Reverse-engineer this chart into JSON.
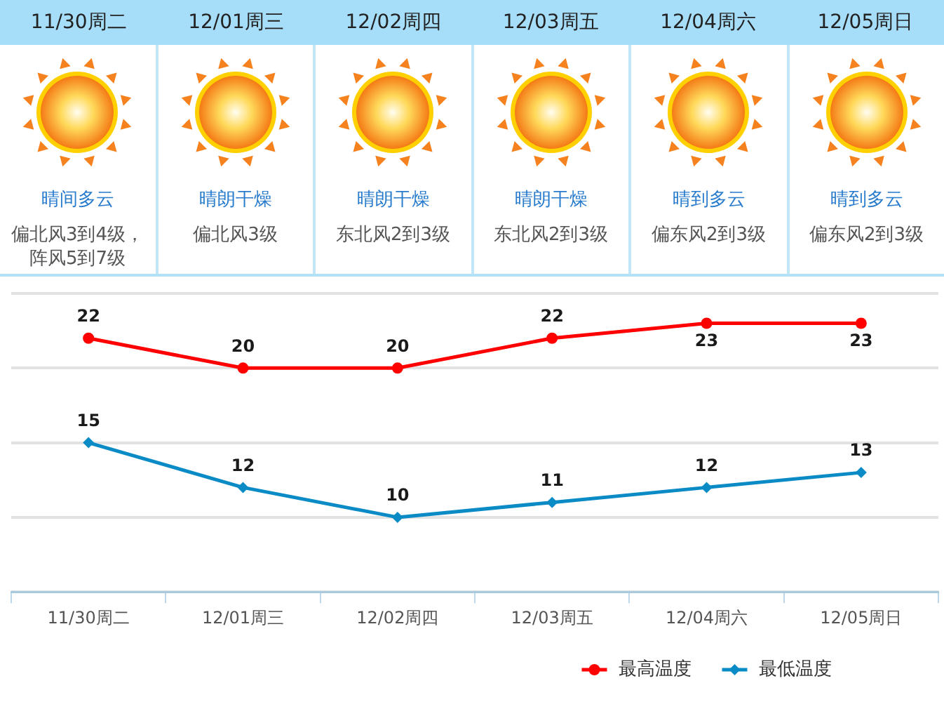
{
  "chart_data": [
    {
      "type": "other",
      "categories": [
        "11/30周二",
        "12/01周三",
        "12/02周四",
        "12/03周五",
        "12/04周六",
        "12/05周日"
      ],
      "annotations": [
        "晴间多云",
        "偏北风3到4级，阵风5到7级",
        "晴朗干燥",
        "偏北风3级",
        "晴朗干燥",
        "东北风2到3级",
        "晴朗干燥",
        "东北风2到3级",
        "晴到多云",
        "偏东风2到3级",
        "晴到多云",
        "偏东风2到3级"
      ]
    },
    {
      "type": "line",
      "categories": [
        "11/30周二",
        "12/01周三",
        "12/02周四",
        "12/03周五",
        "12/04周六",
        "12/05周日"
      ],
      "series": [
        {
          "name": "最高温度",
          "color": "#ff0000",
          "marker": "circle",
          "values": [
            22,
            20,
            20,
            22,
            23,
            23
          ]
        },
        {
          "name": "最低温度",
          "color": "#0b8bc6",
          "marker": "diamond",
          "values": [
            15,
            12,
            10,
            11,
            12,
            13
          ]
        }
      ],
      "ylim": [
        5,
        25
      ],
      "yticks": [
        {
          "value": 5,
          "label": null
        },
        {
          "value": 10,
          "label": null
        },
        {
          "value": 15,
          "label": null
        },
        {
          "value": 20,
          "label": null
        },
        {
          "value": 25,
          "label": null
        }
      ],
      "tick_labels": "x",
      "grid": "y",
      "legend": "bottom right",
      "data_labels": true
    }
  ]
}
